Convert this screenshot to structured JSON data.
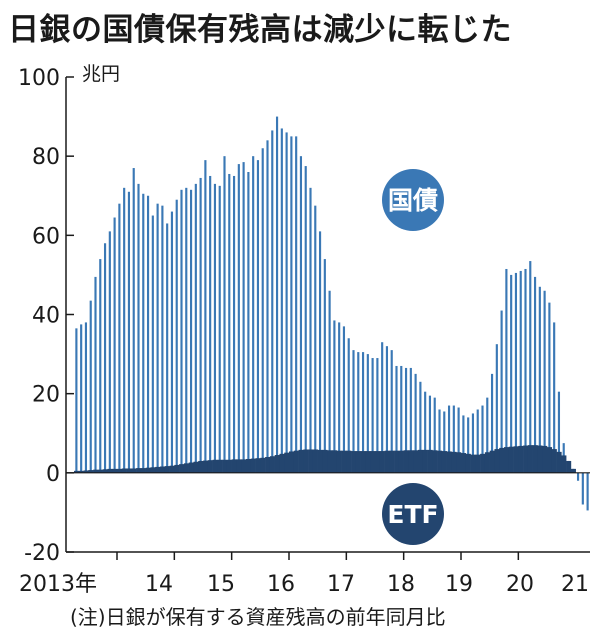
{
  "title": "日銀の国債保有残高は減少に転じた",
  "note": "(注)日銀が保有する資産残高の前年同月比",
  "colors": {
    "jgb": "#3a78b5",
    "etf": "#23456f",
    "badge_jgb": "#3a78b5",
    "badge_etf": "#23456f",
    "axis": "#1a1a1a"
  },
  "chart_data": {
    "type": "bar",
    "stacked": true,
    "unit": "兆円",
    "ylim": [
      -20,
      100
    ],
    "yticks": [
      100,
      80,
      60,
      40,
      20,
      0,
      -20
    ],
    "xtick_labels": [
      "2013年",
      "14",
      "15",
      "16",
      "17",
      "18",
      "19",
      "20",
      "21"
    ],
    "x_start": "2013-04",
    "x_end": "2021-09",
    "series_labels": {
      "jgb": "国債",
      "etf": "ETF"
    },
    "series": [
      {
        "name": "国債",
        "key": "jgb",
        "values": [
          36.5,
          37.5,
          38,
          43.5,
          49.5,
          54,
          58,
          61,
          64.5,
          68,
          72,
          71,
          77,
          73,
          70.5,
          70,
          65,
          68,
          67.5,
          63,
          66,
          69,
          71.5,
          72,
          71.5,
          73,
          74.5,
          79,
          75,
          73,
          72.5,
          80,
          75.5,
          75,
          78,
          78.5,
          76,
          80,
          79,
          82,
          84,
          86.5,
          90,
          87,
          86,
          85,
          85,
          80,
          77.5,
          72,
          67.5,
          61,
          54,
          46,
          38.5,
          38,
          37,
          34,
          31,
          30.5,
          30.5,
          30,
          29,
          29,
          33,
          32,
          31,
          27,
          27,
          26.5,
          26.5,
          25,
          23,
          20.5,
          19.5,
          19,
          16,
          15.5,
          17,
          17,
          16.5,
          14.5,
          14,
          15,
          16,
          17,
          19,
          25,
          32.5,
          41,
          51.5,
          50,
          50.5,
          51,
          51.5,
          53.5,
          49.5,
          47,
          46,
          43,
          38,
          20.5,
          7.5,
          3,
          1,
          -2,
          -8,
          -9.5
        ]
      },
      {
        "name": "ETF",
        "key": "etf",
        "values": [
          0.5,
          0.5,
          0.6,
          0.7,
          0.8,
          0.8,
          0.9,
          1,
          1,
          1,
          1.1,
          1.1,
          1.1,
          1.2,
          1.2,
          1.3,
          1.4,
          1.5,
          1.6,
          1.7,
          1.8,
          2,
          2.2,
          2.4,
          2.6,
          2.8,
          3,
          3.1,
          3.2,
          3.3,
          3.3,
          3.3,
          3.3,
          3.4,
          3.4,
          3.4,
          3.5,
          3.6,
          3.7,
          3.8,
          4,
          4.2,
          4.5,
          4.8,
          5.1,
          5.4,
          5.6,
          5.8,
          5.9,
          5.9,
          5.9,
          5.8,
          5.8,
          5.7,
          5.7,
          5.6,
          5.6,
          5.6,
          5.5,
          5.5,
          5.5,
          5.5,
          5.5,
          5.5,
          5.5,
          5.6,
          5.6,
          5.6,
          5.6,
          5.7,
          5.7,
          5.7,
          5.8,
          5.8,
          5.8,
          5.7,
          5.6,
          5.5,
          5.4,
          5.3,
          5.2,
          5,
          4.8,
          4.6,
          4.6,
          4.8,
          5.2,
          5.6,
          6,
          6.3,
          6.5,
          6.6,
          6.7,
          6.8,
          6.9,
          7,
          7,
          6.9,
          6.8,
          6.5,
          6,
          5.3,
          4.4,
          3.5,
          2.5,
          1.6,
          1
        ]
      }
    ]
  }
}
